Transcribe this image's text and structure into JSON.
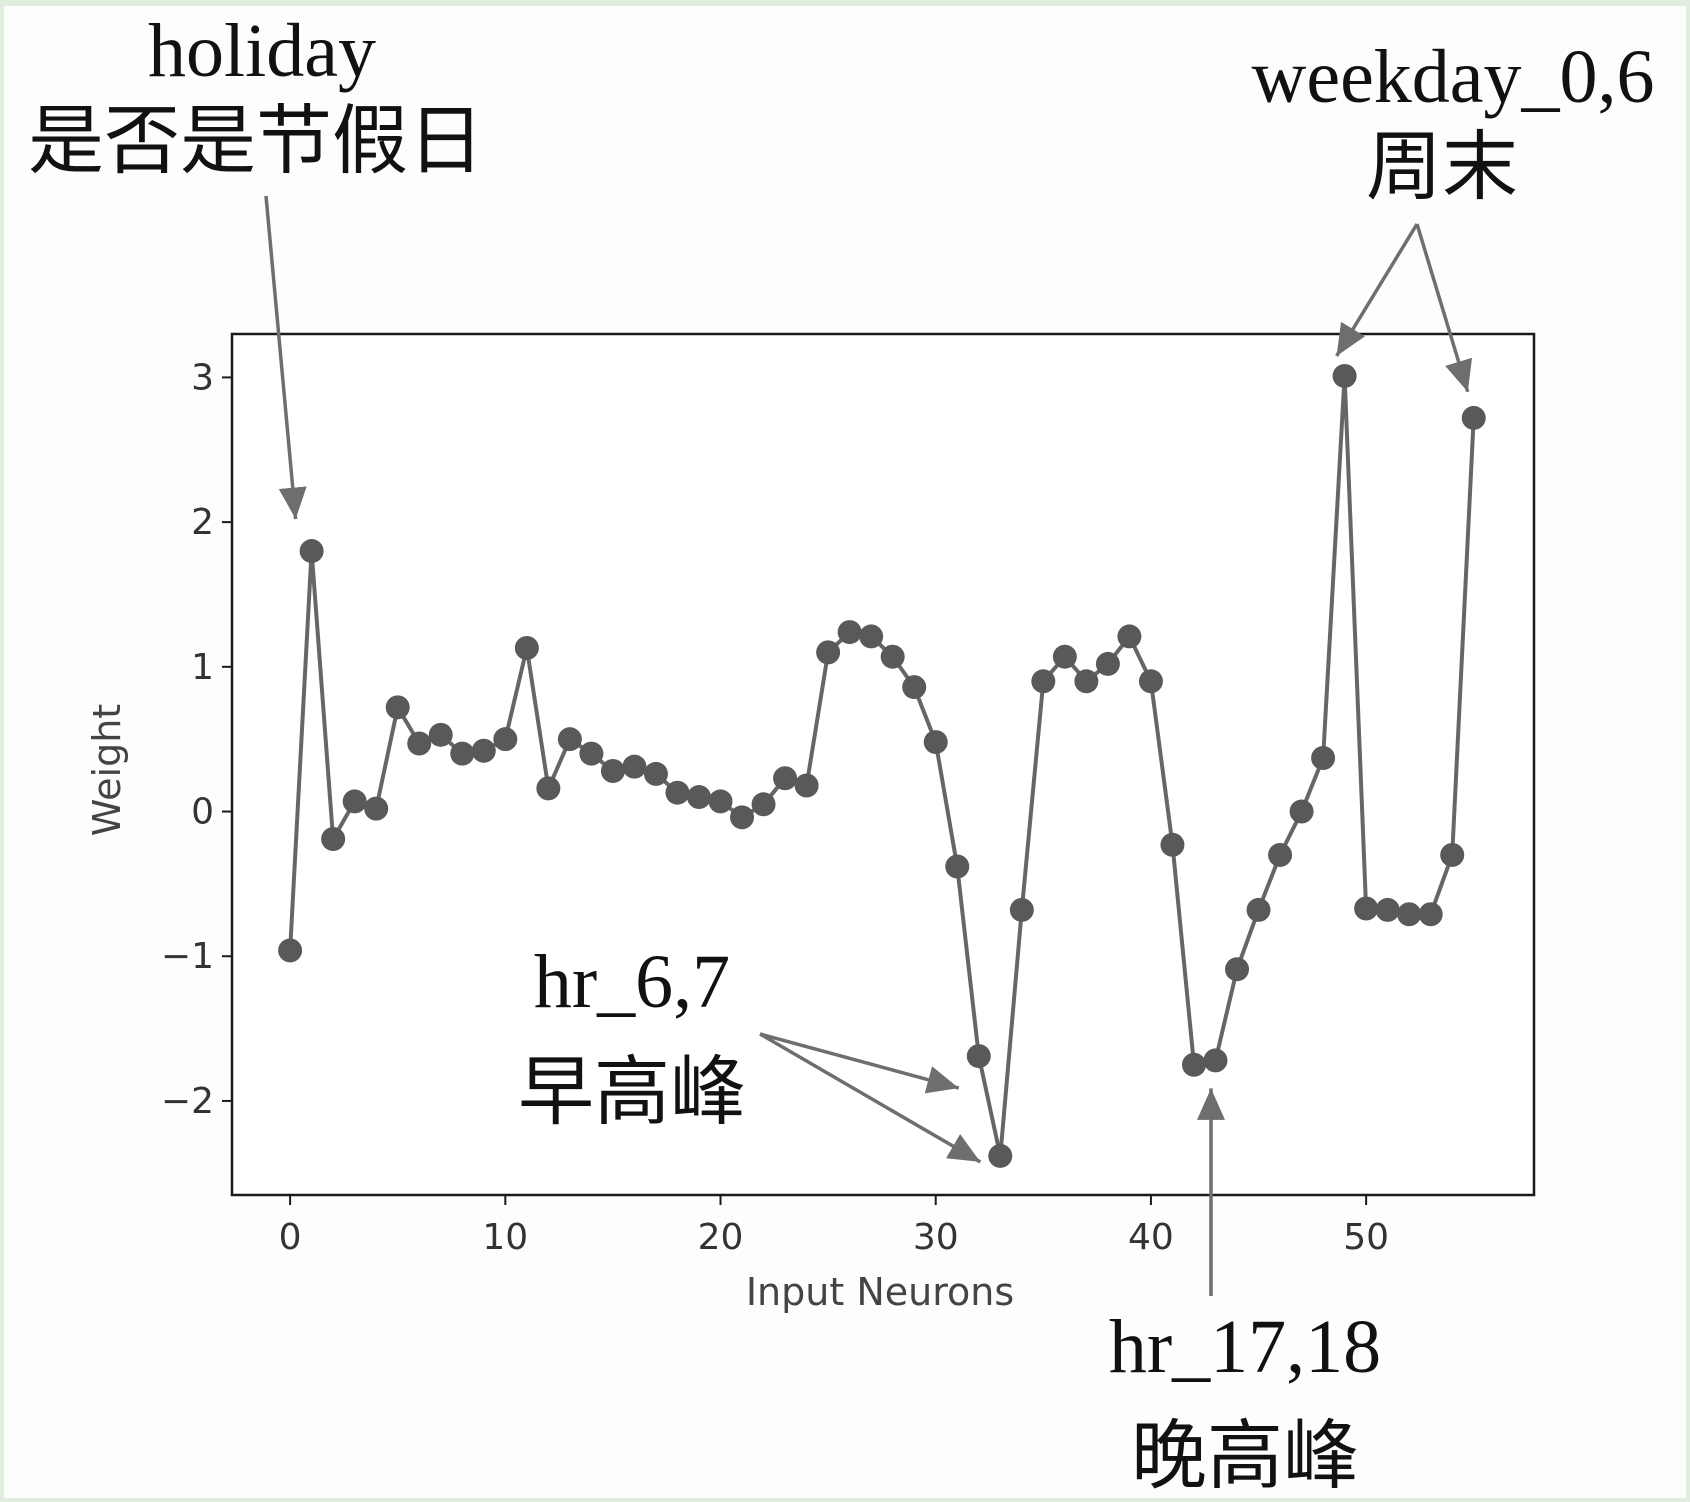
{
  "chart_data": {
    "type": "line",
    "xlabel": "Input Neurons",
    "ylabel": "Weight",
    "xlim": [
      -2.7,
      57.8
    ],
    "ylim": [
      -2.65,
      3.3
    ],
    "x_ticks": [
      {
        "value": 0,
        "label": "0"
      },
      {
        "value": 10,
        "label": "10"
      },
      {
        "value": 20,
        "label": "20"
      },
      {
        "value": 30,
        "label": "30"
      },
      {
        "value": 40,
        "label": "40"
      },
      {
        "value": 50,
        "label": "50"
      }
    ],
    "y_ticks": [
      {
        "value": 3,
        "label": "3"
      },
      {
        "value": 2,
        "label": "2"
      },
      {
        "value": 1,
        "label": "1"
      },
      {
        "value": 0,
        "label": "0"
      },
      {
        "value": -1,
        "label": "−1"
      },
      {
        "value": -2,
        "label": "−2"
      }
    ],
    "grid": false,
    "line_color": "#666666",
    "marker_color": "#595959",
    "x": [
      0,
      1,
      2,
      3,
      4,
      5,
      6,
      7,
      8,
      9,
      10,
      11,
      12,
      13,
      14,
      15,
      16,
      17,
      18,
      19,
      20,
      21,
      22,
      23,
      24,
      25,
      26,
      27,
      28,
      29,
      30,
      31,
      32,
      33,
      34,
      35,
      36,
      37,
      38,
      39,
      40,
      41,
      42,
      43,
      44,
      45,
      46,
      47,
      48,
      49,
      50,
      51,
      52,
      53,
      54,
      55
    ],
    "values": [
      -0.96,
      1.8,
      -0.19,
      0.07,
      0.02,
      0.72,
      0.47,
      0.53,
      0.4,
      0.42,
      0.5,
      1.13,
      0.16,
      0.5,
      0.4,
      0.28,
      0.31,
      0.26,
      0.13,
      0.1,
      0.07,
      -0.04,
      0.05,
      0.23,
      0.18,
      1.1,
      1.24,
      1.21,
      1.07,
      0.86,
      0.48,
      -0.38,
      -1.69,
      -2.38,
      -0.68,
      0.9,
      1.07,
      0.9,
      1.02,
      1.21,
      0.9,
      -0.23,
      -1.75,
      -1.72,
      -1.09,
      -0.68,
      -0.3,
      0.0,
      0.37,
      3.01,
      -0.67,
      -0.68,
      -0.71,
      -0.71,
      -0.3,
      2.72
    ],
    "annotations": [
      {
        "lines": [
          "holiday",
          "是否是节假日"
        ],
        "targets": [
          1
        ]
      },
      {
        "lines": [
          "weekday_0,6",
          "周末"
        ],
        "targets": [
          49,
          55
        ]
      },
      {
        "lines": [
          "hr_6,7",
          "早高峰"
        ],
        "targets": [
          32,
          33
        ]
      },
      {
        "lines": [
          "hr_17,18",
          "晚高峰"
        ],
        "targets": [
          43
        ]
      }
    ],
    "annotation_arrow_color": "#6e6e6e"
  }
}
